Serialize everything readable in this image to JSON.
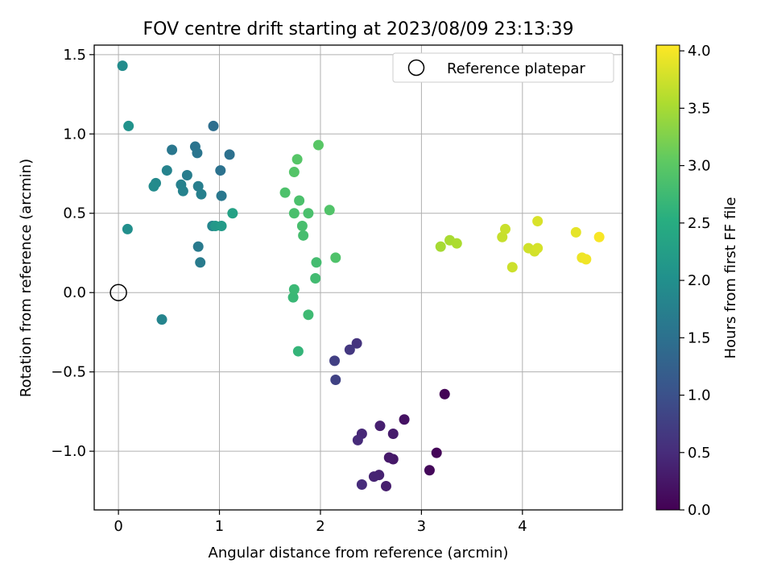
{
  "chart_data": {
    "type": "scatter",
    "title": "FOV centre drift starting at 2023/08/09 23:13:39",
    "xlabel": "Angular distance from reference (arcmin)",
    "ylabel": "Rotation from reference (arcmin)",
    "xlim": [
      -0.24,
      4.99
    ],
    "ylim": [
      -1.37,
      1.56
    ],
    "x_ticks": [
      0,
      1,
      2,
      3,
      4
    ],
    "x_tick_labels": [
      "0",
      "1",
      "2",
      "3",
      "4"
    ],
    "y_ticks": [
      -1.0,
      -0.5,
      0.0,
      0.5,
      1.0,
      1.5
    ],
    "y_tick_labels": [
      "−1.0",
      "−0.5",
      "0.0",
      "0.5",
      "1.0",
      "1.5"
    ],
    "grid": true,
    "legend": {
      "position": "top-right",
      "entries": [
        "Reference platepar"
      ]
    },
    "colormap": "viridis",
    "colorbar": {
      "label": "Hours from first FF file",
      "range": [
        0.0,
        4.05
      ],
      "ticks": [
        0.0,
        0.5,
        1.0,
        1.5,
        2.0,
        2.5,
        3.0,
        3.5,
        4.0
      ],
      "tick_labels": [
        "0.0",
        "0.5",
        "1.0",
        "1.5",
        "2.0",
        "2.5",
        "3.0",
        "3.5",
        "4.0"
      ]
    },
    "reference_point": {
      "name": "Reference platepar",
      "x": 0.0,
      "y": 0.0
    },
    "points": [
      {
        "x": 3.23,
        "y": -0.64,
        "c": 0.02
      },
      {
        "x": 3.15,
        "y": -1.01,
        "c": 0.05
      },
      {
        "x": 3.08,
        "y": -1.12,
        "c": 0.08
      },
      {
        "x": 2.83,
        "y": -0.8,
        "c": 0.2
      },
      {
        "x": 2.72,
        "y": -1.05,
        "c": 0.25
      },
      {
        "x": 2.68,
        "y": -1.04,
        "c": 0.28
      },
      {
        "x": 2.72,
        "y": -0.89,
        "c": 0.3
      },
      {
        "x": 2.65,
        "y": -1.22,
        "c": 0.33
      },
      {
        "x": 2.59,
        "y": -0.84,
        "c": 0.35
      },
      {
        "x": 2.58,
        "y": -1.15,
        "c": 0.38
      },
      {
        "x": 2.53,
        "y": -1.16,
        "c": 0.4
      },
      {
        "x": 2.41,
        "y": -0.89,
        "c": 0.45
      },
      {
        "x": 2.37,
        "y": -0.93,
        "c": 0.48
      },
      {
        "x": 2.41,
        "y": -1.21,
        "c": 0.5
      },
      {
        "x": 2.36,
        "y": -0.32,
        "c": 0.6
      },
      {
        "x": 2.29,
        "y": -0.36,
        "c": 0.65
      },
      {
        "x": 2.14,
        "y": -0.43,
        "c": 0.75
      },
      {
        "x": 2.15,
        "y": -0.55,
        "c": 0.8
      },
      {
        "x": 0.94,
        "y": 1.05,
        "c": 1.45
      },
      {
        "x": 1.1,
        "y": 0.87,
        "c": 1.5
      },
      {
        "x": 1.01,
        "y": 0.77,
        "c": 1.52
      },
      {
        "x": 0.76,
        "y": 0.92,
        "c": 1.55
      },
      {
        "x": 0.78,
        "y": 0.88,
        "c": 1.57
      },
      {
        "x": 0.53,
        "y": 0.9,
        "c": 1.6
      },
      {
        "x": 1.02,
        "y": 0.61,
        "c": 1.62
      },
      {
        "x": 0.79,
        "y": 0.29,
        "c": 1.65
      },
      {
        "x": 0.81,
        "y": 0.19,
        "c": 1.67
      },
      {
        "x": 0.68,
        "y": 0.74,
        "c": 1.7
      },
      {
        "x": 0.79,
        "y": 0.67,
        "c": 1.72
      },
      {
        "x": 0.82,
        "y": 0.62,
        "c": 1.74
      },
      {
        "x": 0.62,
        "y": 0.68,
        "c": 1.76
      },
      {
        "x": 0.64,
        "y": 0.64,
        "c": 1.78
      },
      {
        "x": 0.48,
        "y": 0.77,
        "c": 1.8
      },
      {
        "x": 0.43,
        "y": -0.17,
        "c": 1.82
      },
      {
        "x": 0.93,
        "y": 0.42,
        "c": 1.84
      },
      {
        "x": 0.37,
        "y": 0.69,
        "c": 1.9
      },
      {
        "x": 0.35,
        "y": 0.67,
        "c": 1.92
      },
      {
        "x": 0.04,
        "y": 1.43,
        "c": 1.95
      },
      {
        "x": 0.09,
        "y": 0.4,
        "c": 2.0
      },
      {
        "x": 0.1,
        "y": 1.05,
        "c": 2.05
      },
      {
        "x": 0.96,
        "y": 0.42,
        "c": 2.15
      },
      {
        "x": 1.02,
        "y": 0.42,
        "c": 2.2
      },
      {
        "x": 1.13,
        "y": 0.5,
        "c": 2.3
      },
      {
        "x": 1.78,
        "y": -0.37,
        "c": 2.65
      },
      {
        "x": 1.73,
        "y": -0.03,
        "c": 2.7
      },
      {
        "x": 1.74,
        "y": 0.02,
        "c": 2.72
      },
      {
        "x": 1.88,
        "y": -0.14,
        "c": 2.75
      },
      {
        "x": 1.95,
        "y": 0.09,
        "c": 2.78
      },
      {
        "x": 1.96,
        "y": 0.19,
        "c": 2.8
      },
      {
        "x": 1.83,
        "y": 0.36,
        "c": 2.82
      },
      {
        "x": 1.82,
        "y": 0.42,
        "c": 2.84
      },
      {
        "x": 1.74,
        "y": 0.5,
        "c": 2.85
      },
      {
        "x": 1.88,
        "y": 0.5,
        "c": 2.86
      },
      {
        "x": 1.79,
        "y": 0.58,
        "c": 2.87
      },
      {
        "x": 1.65,
        "y": 0.63,
        "c": 2.88
      },
      {
        "x": 2.15,
        "y": 0.22,
        "c": 2.9
      },
      {
        "x": 2.09,
        "y": 0.52,
        "c": 2.92
      },
      {
        "x": 1.74,
        "y": 0.76,
        "c": 2.94
      },
      {
        "x": 1.77,
        "y": 0.84,
        "c": 2.96
      },
      {
        "x": 1.98,
        "y": 0.93,
        "c": 2.98
      },
      {
        "x": 3.19,
        "y": 0.29,
        "c": 3.5
      },
      {
        "x": 3.28,
        "y": 0.33,
        "c": 3.52
      },
      {
        "x": 3.35,
        "y": 0.31,
        "c": 3.54
      },
      {
        "x": 3.8,
        "y": 0.35,
        "c": 3.7
      },
      {
        "x": 3.83,
        "y": 0.4,
        "c": 3.72
      },
      {
        "x": 3.9,
        "y": 0.16,
        "c": 3.74
      },
      {
        "x": 4.06,
        "y": 0.28,
        "c": 3.76
      },
      {
        "x": 4.12,
        "y": 0.26,
        "c": 3.78
      },
      {
        "x": 4.15,
        "y": 0.28,
        "c": 3.8
      },
      {
        "x": 4.15,
        "y": 0.45,
        "c": 3.82
      },
      {
        "x": 4.53,
        "y": 0.38,
        "c": 3.9
      },
      {
        "x": 4.59,
        "y": 0.22,
        "c": 3.95
      },
      {
        "x": 4.63,
        "y": 0.21,
        "c": 3.97
      },
      {
        "x": 4.76,
        "y": 0.35,
        "c": 4.02
      }
    ]
  }
}
